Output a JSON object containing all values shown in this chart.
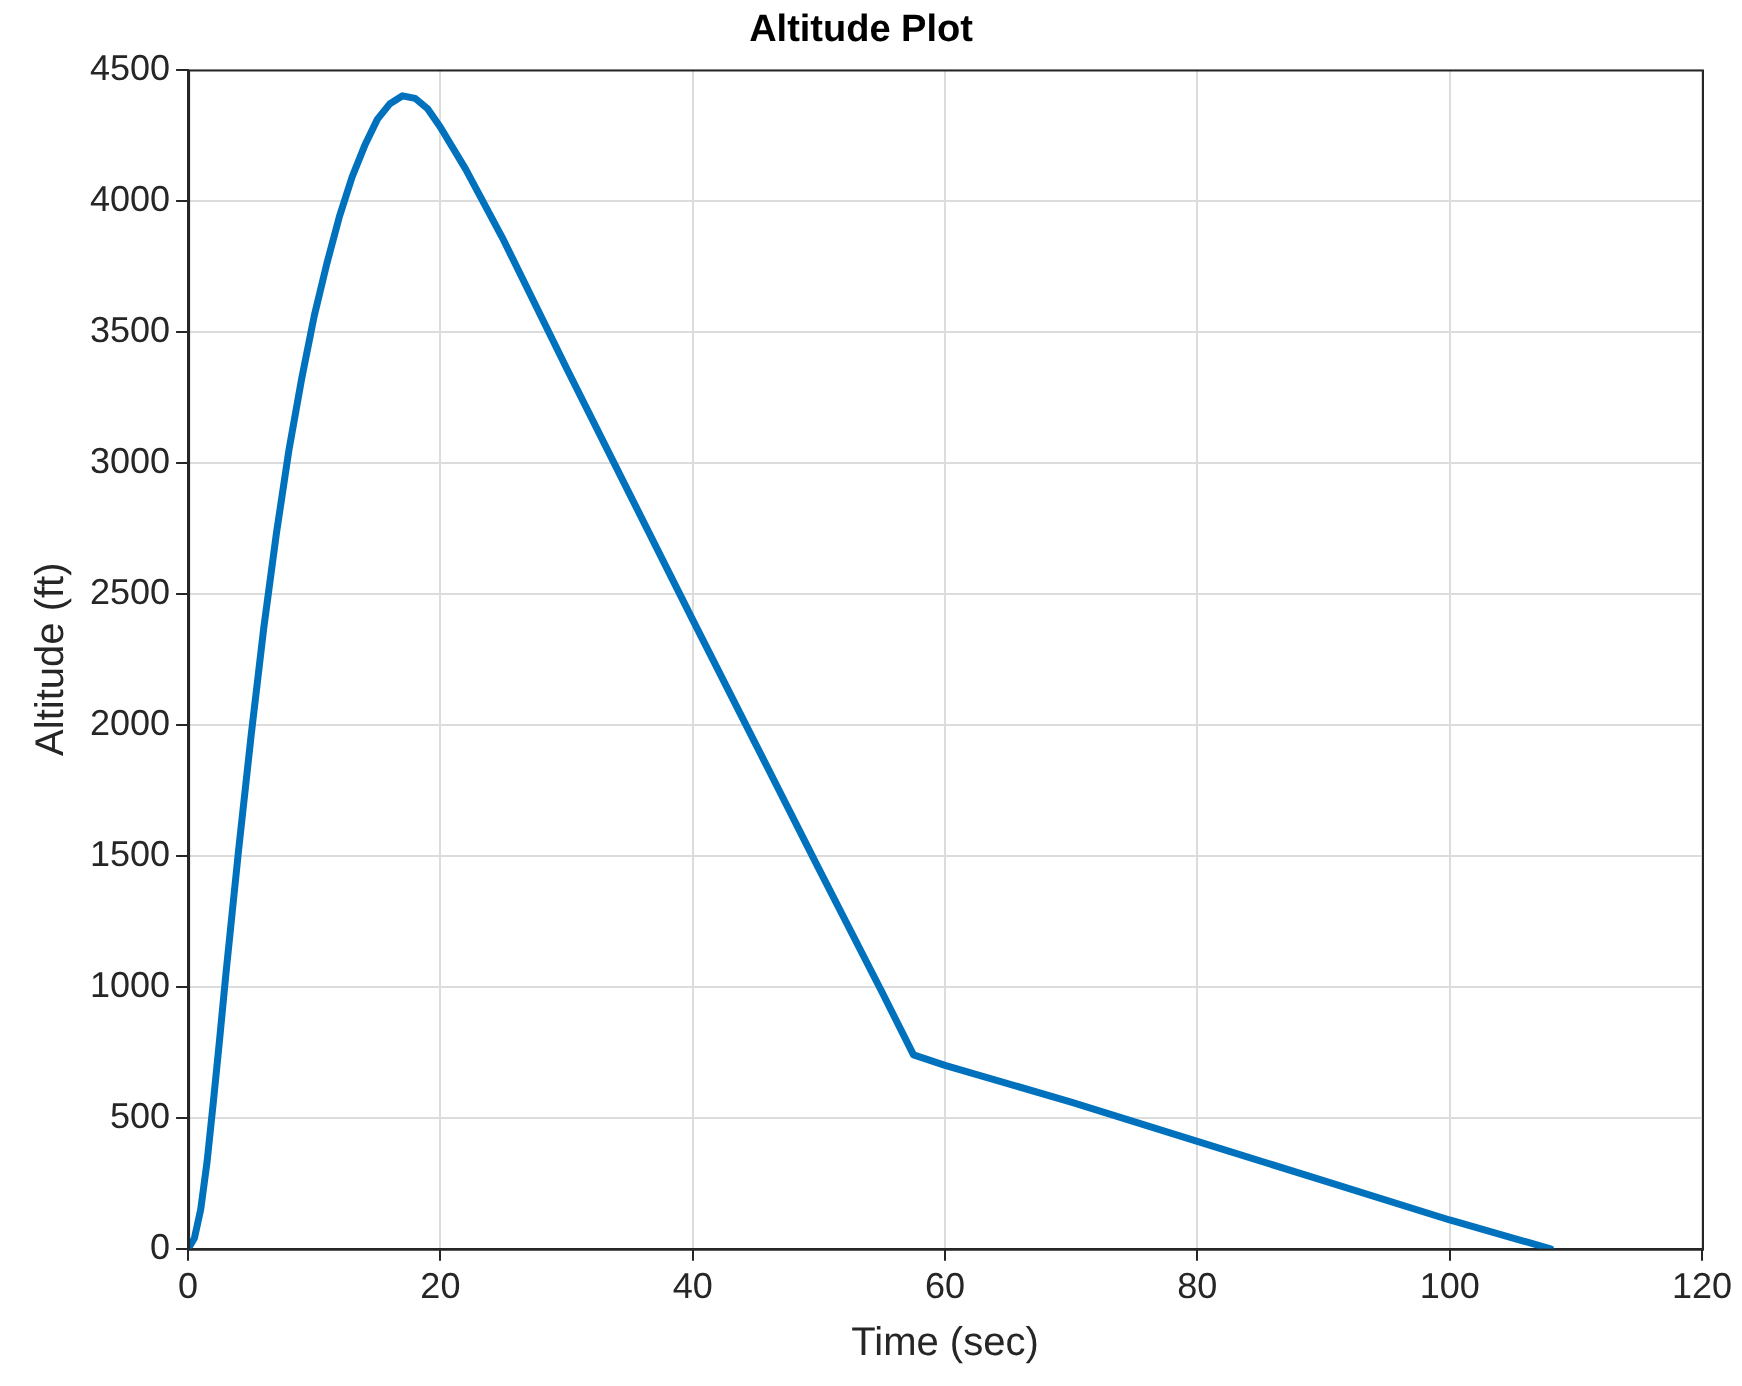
{
  "chart_data": {
    "type": "line",
    "title": "Altitude Plot",
    "xlabel": "Time (sec)",
    "ylabel": "Altitude (ft)",
    "x": [
      0,
      0.5,
      1,
      1.5,
      2,
      2.5,
      3,
      4,
      5,
      6,
      7,
      8,
      9,
      10,
      11,
      12,
      13,
      14,
      15,
      16,
      17,
      18,
      19,
      20,
      22,
      25,
      30,
      35,
      40,
      45,
      50,
      55,
      57.5,
      60,
      70,
      80,
      90,
      100,
      108
    ],
    "series": [
      {
        "color": "#0072bd",
        "values": [
          0,
          40,
          150,
          330,
          560,
          800,
          1050,
          1520,
          1960,
          2370,
          2730,
          3050,
          3320,
          3560,
          3760,
          3940,
          4090,
          4210,
          4310,
          4370,
          4400,
          4390,
          4350,
          4280,
          4120,
          3850,
          3360,
          2880,
          2400,
          1925,
          1450,
          980,
          740,
          700,
          560,
          410,
          260,
          110,
          0
        ]
      }
    ],
    "xlim": [
      0,
      120
    ],
    "xticks": [
      0,
      20,
      40,
      60,
      80,
      100,
      120
    ],
    "ylim": [
      0,
      4500
    ],
    "yticks": [
      0,
      500,
      1000,
      1500,
      2000,
      2500,
      3000,
      3500,
      4000,
      4500
    ],
    "grid": true,
    "legend": false,
    "marker": "none",
    "line_style": "solid"
  }
}
